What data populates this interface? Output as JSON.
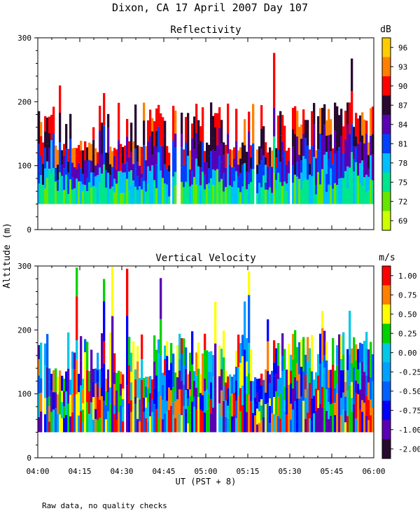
{
  "figure_title": "Dixon, CA 17 April 2007  Day 107",
  "shared_y_label": "Altitude (m)",
  "shared_x_label": "UT  (PST + 8)",
  "footnote": "Raw data, no quality checks",
  "chart_data": [
    {
      "type": "heatmap",
      "title": "Reflectivity",
      "xlabel": "UT  (PST + 8)",
      "ylabel": "Altitude (m)",
      "xlim": [
        "04:00",
        "06:00"
      ],
      "ylim": [
        0,
        300
      ],
      "x_ticks": [
        "04:00",
        "04:15",
        "04:30",
        "04:45",
        "05:00",
        "05:15",
        "05:30",
        "05:45",
        "06:00"
      ],
      "y_ticks": [
        0,
        100,
        200,
        300
      ],
      "colorbar": {
        "unit": "dB",
        "ticks": [
          "69",
          "72",
          "75",
          "78",
          "81",
          "84",
          "87",
          "90",
          "93",
          "96"
        ],
        "colors": [
          "#ccff00",
          "#66e600",
          "#00e68c",
          "#00bfff",
          "#0040ff",
          "#5a00b4",
          "#280a30",
          "#ff0000",
          "#ff8000",
          "#ffcc00"
        ]
      },
      "data_bottom_m": 40,
      "typical_top_m": [
        120,
        200
      ],
      "sporadic_echo_max_m": 300
    },
    {
      "type": "heatmap",
      "title": "Vertical Velocity",
      "xlabel": "UT  (PST + 8)",
      "ylabel": "Altitude (m)",
      "xlim": [
        "04:00",
        "06:00"
      ],
      "ylim": [
        0,
        300
      ],
      "x_ticks": [
        "04:00",
        "04:15",
        "04:30",
        "04:45",
        "05:00",
        "05:15",
        "05:30",
        "05:45",
        "06:00"
      ],
      "y_ticks": [
        0,
        100,
        200,
        300
      ],
      "colorbar": {
        "unit": "m/s",
        "ticks": [
          "-2.00",
          "-1.00",
          "-0.75",
          "-0.50",
          "-0.25",
          "0.00",
          "0.25",
          "0.50",
          "0.75",
          "1.00"
        ],
        "colors": [
          "#280a30",
          "#5a00b4",
          "#0000ff",
          "#0060ff",
          "#00a0ff",
          "#00c8e6",
          "#00d200",
          "#ffff00",
          "#ff8000",
          "#ff0000"
        ]
      },
      "data_bottom_m": 40,
      "typical_top_m": [
        120,
        200
      ],
      "sporadic_echo_max_m": 300
    }
  ]
}
